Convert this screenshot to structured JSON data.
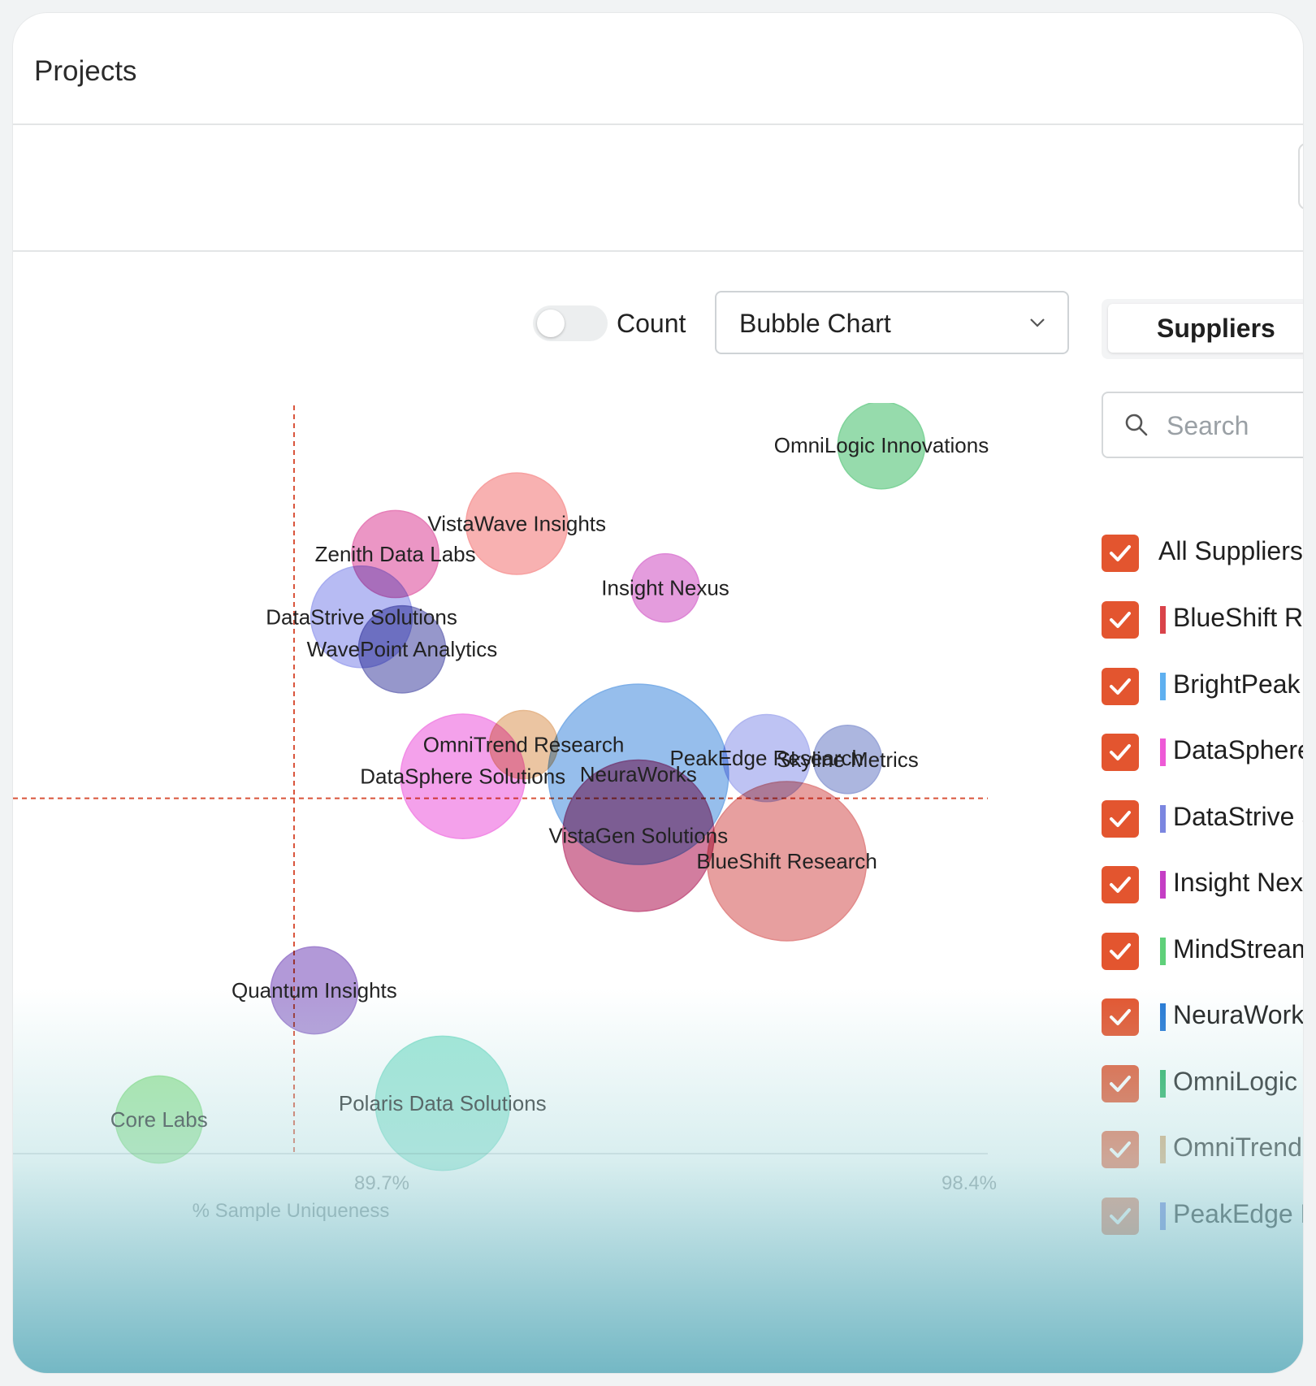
{
  "page": {
    "title": "Projects"
  },
  "toolbar": {
    "count_label": "Count",
    "count_toggle_on": false,
    "chart_type": "Bubble Chart"
  },
  "panel": {
    "tab_label": "Suppliers",
    "search_placeholder": "Search",
    "all_label": "All Suppliers",
    "items": [
      {
        "label": "BlueShift Re",
        "color": "#d9434a",
        "checked": true
      },
      {
        "label": "BrightPeak",
        "color": "#5fb0f0",
        "checked": true
      },
      {
        "label": "DataSphere",
        "color": "#ee5ad6",
        "checked": true
      },
      {
        "label": "DataStrive S",
        "color": "#7b86e0",
        "checked": true
      },
      {
        "label": "Insight Nex",
        "color": "#c43ec4",
        "checked": true
      },
      {
        "label": "MindStream",
        "color": "#5fd07a",
        "checked": true
      },
      {
        "label": "NeuraWork",
        "color": "#2478d4",
        "checked": true
      },
      {
        "label": "OmniLogic",
        "color": "#24b060",
        "checked": true
      },
      {
        "label": "OmniTrend",
        "color": "#d6a26a",
        "checked": true
      },
      {
        "label": "PeakEdge F",
        "color": "#6f7fe0",
        "checked": true
      }
    ]
  },
  "chart_data": {
    "type": "scatter",
    "x_ticks": [
      "89.7%",
      "98.4%"
    ],
    "x_tick_values": [
      89.7,
      98.4
    ],
    "xlabel": "% Sample Uniqueness",
    "grid": false,
    "points": [
      {
        "name": "OmniLogic Innovations",
        "x": 97.1,
        "y": 95.5,
        "size": 2,
        "color": "#7fd39a"
      },
      {
        "name": "VistaWave Insights",
        "x": 91.7,
        "y": 84.4,
        "size": 3,
        "color": "#f7a0a0"
      },
      {
        "name": "Zenith Data Labs",
        "x": 89.9,
        "y": 80.1,
        "size": 2,
        "color": "#e67fb8"
      },
      {
        "name": "Insight Nexus",
        "x": 93.9,
        "y": 75.3,
        "size": 1,
        "color": "#de86d6"
      },
      {
        "name": "DataStrive Solutions",
        "x": 89.4,
        "y": 71.2,
        "size": 3,
        "color": "#a7acf0"
      },
      {
        "name": "WavePoint Analytics",
        "x": 90.0,
        "y": 66.6,
        "size": 2,
        "color": "#7f80bf"
      },
      {
        "name": "OmniTrend Research",
        "x": 91.8,
        "y": 53.1,
        "size": 1,
        "color": "#e6b88e"
      },
      {
        "name": "NeuraWorks",
        "x": 93.5,
        "y": 48.9,
        "size": 12,
        "color": "#7fb0e8"
      },
      {
        "name": "DataSphere Solutions",
        "x": 90.9,
        "y": 48.6,
        "size": 5,
        "color": "#f28ce6"
      },
      {
        "name": "PeakEdge Research",
        "x": 95.4,
        "y": 51.2,
        "size": 2,
        "color": "#b0b6f0"
      },
      {
        "name": "Skyline Metrics",
        "x": 96.6,
        "y": 51.0,
        "size": 1,
        "color": "#9aa6d8"
      },
      {
        "name": "VistaGen Solutions",
        "x": 93.5,
        "y": 40.2,
        "size": 8,
        "color": "#c8608a"
      },
      {
        "name": "BlueShift Research",
        "x": 95.7,
        "y": 36.6,
        "size": 9,
        "color": "#e28a8a"
      },
      {
        "name": "Quantum Insights",
        "x": 88.7,
        "y": 18.3,
        "size": 2,
        "color": "#a183cf"
      },
      {
        "name": "Polaris Data Solutions",
        "x": 90.6,
        "y": 2.3,
        "size": 6,
        "color": "#88e0cc"
      },
      {
        "name": "Core Labs",
        "x": 86.4,
        "y": 0.0,
        "size": 2,
        "color": "#8fe08a"
      }
    ],
    "reference_lines": {
      "x": 88.4,
      "y": 45.5,
      "color": "#d9533a"
    }
  }
}
